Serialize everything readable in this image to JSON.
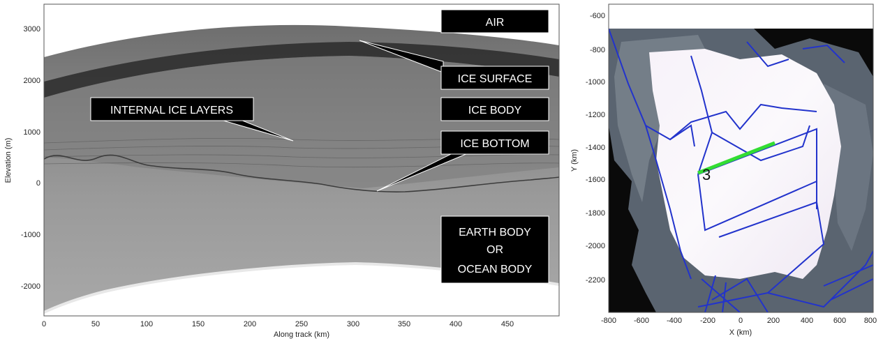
{
  "radargram": {
    "ylabel": "Elevation (m)",
    "xlabel": "Along track (km)",
    "xticks": [
      "0",
      "50",
      "100",
      "150",
      "200",
      "250",
      "300",
      "350",
      "400",
      "450"
    ],
    "yticks": [
      "3000",
      "2000",
      "1000",
      "0",
      "-1000",
      "-2000"
    ],
    "xlim": [
      0,
      500
    ],
    "ylim": [
      -2600,
      3400
    ],
    "labels": {
      "air": "AIR",
      "ice_surface": "ICE SURFACE",
      "ice_body": "ICE BODY",
      "internal_layers": "INTERNAL ICE LAYERS",
      "ice_bottom": "ICE BOTTOM",
      "earth_line1": "EARTH BODY",
      "earth_line2": "OR",
      "earth_line3": "OCEAN BODY"
    }
  },
  "map": {
    "xlabel": "X (km)",
    "ylabel": "Y (km)",
    "xticks": [
      "-800",
      "-600",
      "-400",
      "-200",
      "0",
      "200",
      "400",
      "600",
      "800"
    ],
    "yticks": [
      "-600",
      "-800",
      "-1000",
      "-1200",
      "-1400",
      "-1600",
      "-1800",
      "-2000",
      "-2200"
    ],
    "xlim": [
      -800,
      800
    ],
    "ylim": [
      -2400,
      -560
    ],
    "segment_marker": "3",
    "track_color": "#2233cc",
    "highlight_color": "#33dd33"
  }
}
